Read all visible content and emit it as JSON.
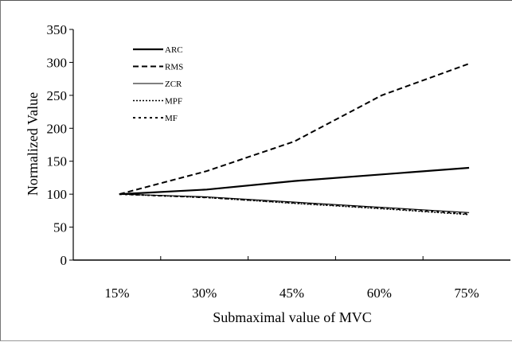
{
  "chart_data": {
    "type": "line",
    "title": "",
    "xlabel": "Submaximal value of MVC",
    "ylabel": "Normalized Value",
    "categories": [
      "15%",
      "30%",
      "45%",
      "60%",
      "75%"
    ],
    "ylim": [
      0,
      350
    ],
    "yticks": [
      0,
      50,
      100,
      150,
      200,
      250,
      300,
      350
    ],
    "grid": false,
    "legend_position": "top-left",
    "series": [
      {
        "name": "ARC",
        "values": [
          100,
          107,
          120,
          130,
          140
        ],
        "dash": "solid",
        "color": "#000000"
      },
      {
        "name": "RMS",
        "values": [
          100,
          135,
          180,
          250,
          298
        ],
        "dash": "dashed",
        "color": "#000000"
      },
      {
        "name": "ZCR",
        "values": [
          100,
          96,
          88,
          80,
          72
        ],
        "dash": "solid-thin",
        "color": "#000000"
      },
      {
        "name": "MPF",
        "values": [
          100,
          95,
          86,
          78,
          69
        ],
        "dash": "dotted",
        "color": "#000000"
      },
      {
        "name": "MF",
        "values": [
          100,
          95,
          87,
          79,
          70
        ],
        "dash": "dash-dot",
        "color": "#000000"
      }
    ]
  }
}
